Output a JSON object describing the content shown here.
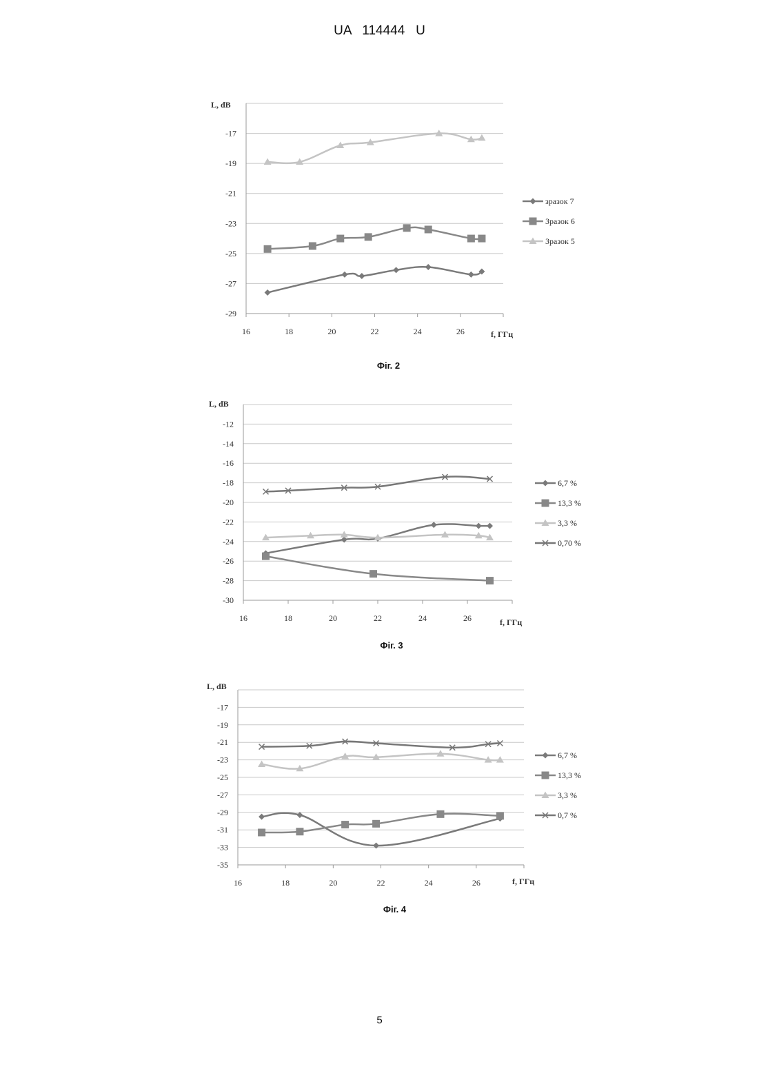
{
  "header": {
    "text": "UA   114444   U"
  },
  "page_number": "5",
  "chart_data": [
    {
      "type": "line",
      "caption": "Фіг. 2",
      "ylabel": "L, dB",
      "xlabel": "f, ГГц",
      "xlim": [
        16,
        28
      ],
      "ylim": [
        -29,
        -15
      ],
      "xticks": [
        16,
        18,
        20,
        22,
        24,
        26
      ],
      "yticks": [
        -17,
        -19,
        -21,
        -23,
        -25,
        -27,
        -29
      ],
      "grid": true,
      "legend_position": "right",
      "series": [
        {
          "name": "зразок 7",
          "marker": "diamond",
          "color": "#7a7a7a",
          "x": [
            17,
            20.6,
            21.4,
            23,
            24.5,
            26.5,
            27
          ],
          "y": [
            -27.6,
            -26.4,
            -26.5,
            -26.1,
            -25.9,
            -26.4,
            -26.2
          ]
        },
        {
          "name": "Зразок 6",
          "marker": "square",
          "color": "#888888",
          "x": [
            17,
            19.1,
            20.4,
            21.7,
            23.5,
            24.5,
            26.5,
            27
          ],
          "y": [
            -24.7,
            -24.5,
            -24.0,
            -23.9,
            -23.3,
            -23.4,
            -24.0,
            -24.0
          ]
        },
        {
          "name": "Зразок 5",
          "marker": "triangle",
          "color": "#c4c4c4",
          "x": [
            17,
            18.5,
            20.4,
            21.8,
            25,
            26.5,
            27
          ],
          "y": [
            -18.9,
            -18.9,
            -17.8,
            -17.6,
            -17.0,
            -17.4,
            -17.3
          ]
        }
      ]
    },
    {
      "type": "line",
      "caption": "Фіг. 3",
      "ylabel": "L, dB",
      "xlabel": "f, ГГц",
      "xlim": [
        16,
        28
      ],
      "ylim": [
        -30,
        -10
      ],
      "xticks": [
        16,
        18,
        20,
        22,
        24,
        26
      ],
      "yticks": [
        -12,
        -14,
        -16,
        -18,
        -20,
        -22,
        -24,
        -26,
        -28,
        -30
      ],
      "grid": true,
      "legend_position": "right",
      "series": [
        {
          "name": "6,7 %",
          "marker": "diamond",
          "color": "#7a7a7a",
          "x": [
            17,
            20.5,
            22,
            24.5,
            26.5,
            27
          ],
          "y": [
            -25.2,
            -23.8,
            -23.7,
            -22.3,
            -22.4,
            -22.4
          ]
        },
        {
          "name": "13,3 %",
          "marker": "square",
          "color": "#888888",
          "x": [
            17,
            21.8,
            27
          ],
          "y": [
            -25.5,
            -27.3,
            -28.0
          ]
        },
        {
          "name": "3,3 %",
          "marker": "triangle",
          "color": "#c4c4c4",
          "x": [
            17,
            19,
            20.5,
            22,
            25,
            26.5,
            27
          ],
          "y": [
            -23.6,
            -23.4,
            -23.3,
            -23.6,
            -23.3,
            -23.4,
            -23.6
          ]
        },
        {
          "name": "0,70 %",
          "marker": "x",
          "color": "#777777",
          "x": [
            17,
            18,
            20.5,
            22,
            25,
            27
          ],
          "y": [
            -18.9,
            -18.8,
            -18.5,
            -18.4,
            -17.4,
            -17.6
          ]
        }
      ]
    },
    {
      "type": "line",
      "caption": "Фіг. 4",
      "ylabel": "L, dB",
      "xlabel": "f, ГГц",
      "xlim": [
        16,
        28
      ],
      "ylim": [
        -35,
        -15
      ],
      "xticks": [
        16,
        18,
        20,
        22,
        24,
        26
      ],
      "yticks": [
        -17,
        -19,
        -21,
        -23,
        -25,
        -27,
        -29,
        -31,
        -33,
        -35
      ],
      "grid": true,
      "legend_position": "right",
      "series": [
        {
          "name": "6,7 %",
          "marker": "diamond",
          "color": "#7a7a7a",
          "x": [
            17,
            18.6,
            21.8,
            27
          ],
          "y": [
            -29.5,
            -29.3,
            -32.8,
            -29.7
          ]
        },
        {
          "name": "13,3 %",
          "marker": "square",
          "color": "#888888",
          "x": [
            17,
            18.6,
            20.5,
            21.8,
            24.5,
            27
          ],
          "y": [
            -31.3,
            -31.2,
            -30.4,
            -30.3,
            -29.2,
            -29.4
          ]
        },
        {
          "name": "3,3 %",
          "marker": "triangle",
          "color": "#c4c4c4",
          "x": [
            17,
            18.6,
            20.5,
            21.8,
            24.5,
            26.5,
            27
          ],
          "y": [
            -23.5,
            -24.0,
            -22.6,
            -22.7,
            -22.3,
            -23.0,
            -23.0
          ]
        },
        {
          "name": "0,7 %",
          "marker": "x",
          "color": "#777777",
          "x": [
            17,
            19,
            20.5,
            21.8,
            25,
            26.5,
            27
          ],
          "y": [
            -21.5,
            -21.4,
            -20.9,
            -21.1,
            -21.6,
            -21.2,
            -21.1
          ]
        }
      ]
    }
  ]
}
